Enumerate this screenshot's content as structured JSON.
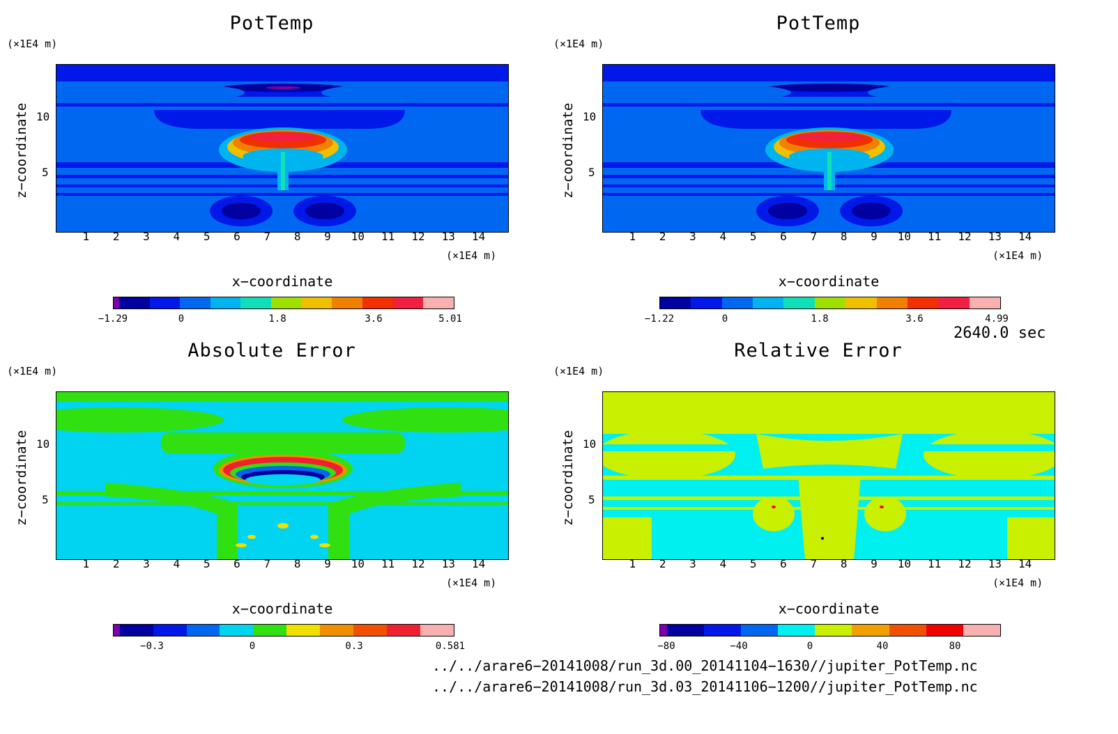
{
  "x_unit": "(×1E4 m)",
  "z_unit": "(×1E4 m)",
  "xlabel": "x−coordinate",
  "ylabel": "z−coordinate",
  "x_ticks": [
    "1",
    "2",
    "3",
    "4",
    "5",
    "6",
    "7",
    "8",
    "9",
    "10",
    "11",
    "12",
    "13",
    "14"
  ],
  "y_ticks": [
    "5",
    "10"
  ],
  "time_label": "2640.0 sec",
  "file1": "../../arare6−20141008/run_3d.00_20141104−1630//jupiter_PotTemp.nc",
  "file2": "../../arare6−20141008/run_3d.03_20141106−1200//jupiter_PotTemp.nc",
  "chart_data": [
    {
      "type": "heatmap",
      "title": "PotTemp",
      "xlabel": "x−coordinate",
      "ylabel": "z−coordinate",
      "xlim": [
        0,
        15
      ],
      "ylim": [
        0,
        14
      ],
      "colorbar": {
        "min": -1.29,
        "max": 5.01,
        "tick_labels": [
          "−1.29",
          "0",
          "1.8",
          "3.6",
          "5.01"
        ]
      },
      "colors": [
        "#7a00b0",
        "#0000a0",
        "#0018e8",
        "#0068f0",
        "#00b4f0",
        "#10e0b8",
        "#a0e000",
        "#f0c000",
        "#f08000",
        "#f03000",
        "#f02040",
        "#f8b0b0"
      ]
    },
    {
      "type": "heatmap",
      "title": "PotTemp",
      "xlabel": "x−coordinate",
      "ylabel": "z−coordinate",
      "xlim": [
        0,
        15
      ],
      "ylim": [
        0,
        14
      ],
      "colorbar": {
        "min": -1.22,
        "max": 4.99,
        "tick_labels": [
          "−1.22",
          "0",
          "1.8",
          "3.6",
          "4.99"
        ]
      },
      "colors": [
        "#0000a0",
        "#0018e8",
        "#0068f0",
        "#00b4f0",
        "#10e0b8",
        "#a0e000",
        "#f0c000",
        "#f08000",
        "#f03000",
        "#f02040",
        "#f8b0b0"
      ]
    },
    {
      "type": "heatmap",
      "title": "Absolute Error",
      "xlabel": "x−coordinate",
      "ylabel": "z−coordinate",
      "xlim": [
        0,
        15
      ],
      "ylim": [
        0,
        14
      ],
      "colorbar": {
        "max": 0.581,
        "tick_labels": [
          "−0.3",
          "0",
          "0.3",
          "0.581"
        ]
      },
      "colors": [
        "#7a00b0",
        "#0000a0",
        "#0018e8",
        "#0068f0",
        "#00d4f0",
        "#30e010",
        "#f0e000",
        "#f09000",
        "#f05000",
        "#f02030",
        "#f8b0b0"
      ]
    },
    {
      "type": "heatmap",
      "title": "Relative Error",
      "xlabel": "x−coordinate",
      "ylabel": "z−coordinate",
      "xlim": [
        0,
        15
      ],
      "ylim": [
        0,
        14
      ],
      "colorbar": {
        "tick_labels": [
          "−80",
          "−40",
          "0",
          "40",
          "80"
        ]
      },
      "colors": [
        "#7a00b0",
        "#0000a0",
        "#0018e8",
        "#0068f0",
        "#00f0f0",
        "#c8f000",
        "#f0a000",
        "#f05000",
        "#f00000",
        "#f8b0b0"
      ]
    }
  ]
}
